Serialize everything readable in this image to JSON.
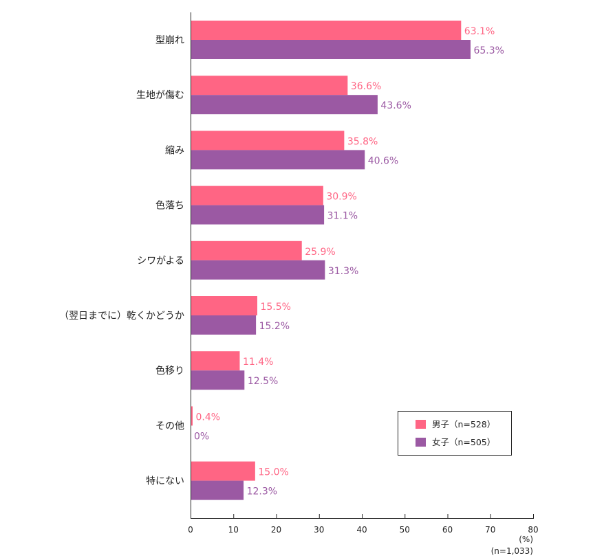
{
  "chart_data": {
    "type": "bar",
    "orientation": "horizontal",
    "categories": [
      "型崩れ",
      "生地が傷む",
      "縮み",
      "色落ち",
      "シワがよる",
      "（翌日までに）乾くかどうか",
      "色移り",
      "その他",
      "特にない"
    ],
    "series": [
      {
        "name": "男子（n=528）",
        "color": "#ff6584",
        "values": [
          63.1,
          36.6,
          35.8,
          30.9,
          25.9,
          15.5,
          11.4,
          0.4,
          15.0
        ]
      },
      {
        "name": "女子（n=505）",
        "color": "#9b59a3",
        "values": [
          65.3,
          43.6,
          40.6,
          31.1,
          31.3,
          15.2,
          12.5,
          0,
          12.3
        ]
      }
    ],
    "xlim": [
      0,
      80
    ],
    "xticks": [
      0,
      10,
      20,
      30,
      40,
      50,
      60,
      70,
      80
    ],
    "xlabel": "(%)",
    "note": "(n=1,033)",
    "legend_position": "lower-right",
    "grid": false
  }
}
